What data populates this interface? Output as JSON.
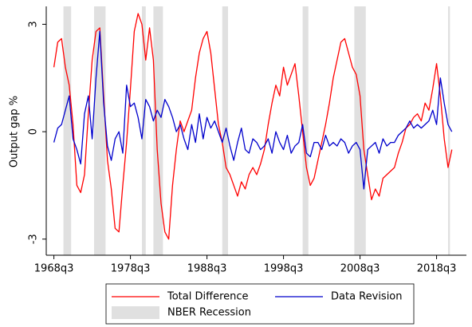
{
  "chart_data": {
    "type": "line",
    "y_label": "Output gap %",
    "x": [
      1968.5,
      1969,
      1969.5,
      1970,
      1970.5,
      1971,
      1971.5,
      1972,
      1972.5,
      1973,
      1973.5,
      1974,
      1974.5,
      1975,
      1975.5,
      1976,
      1976.5,
      1977,
      1977.5,
      1978,
      1978.5,
      1979,
      1979.5,
      1980,
      1980.5,
      1981,
      1981.5,
      1982,
      1982.5,
      1983,
      1983.5,
      1984,
      1984.5,
      1985,
      1985.5,
      1986,
      1986.5,
      1987,
      1987.5,
      1988,
      1988.5,
      1989,
      1989.5,
      1990,
      1990.5,
      1991,
      1991.5,
      1992,
      1992.5,
      1993,
      1993.5,
      1994,
      1994.5,
      1995,
      1995.5,
      1996,
      1996.5,
      1997,
      1997.5,
      1998,
      1998.5,
      1999,
      1999.5,
      2000,
      2000.5,
      2001,
      2001.5,
      2002,
      2002.5,
      2003,
      2003.5,
      2004,
      2004.5,
      2005,
      2005.5,
      2006,
      2006.5,
      2007,
      2007.5,
      2008,
      2008.5,
      2009,
      2009.5,
      2010,
      2010.5,
      2011,
      2011.5,
      2012,
      2012.5,
      2013,
      2013.5,
      2014,
      2014.5,
      2015,
      2015.5,
      2016,
      2016.5,
      2017,
      2017.5,
      2018,
      2018.5,
      2019,
      2019.5,
      2020,
      2020.5
    ],
    "series": [
      {
        "name": "Total Difference",
        "color": "#ff0000",
        "values": [
          1.8,
          2.5,
          2.6,
          1.8,
          1.3,
          0.2,
          -1.5,
          -1.7,
          -1.2,
          0.5,
          2.0,
          2.8,
          2.9,
          1.0,
          -0.8,
          -1.6,
          -2.7,
          -2.8,
          -1.5,
          -0.3,
          1.2,
          2.8,
          3.3,
          3.0,
          2.0,
          2.9,
          2.0,
          -0.5,
          -2.0,
          -2.8,
          -3.0,
          -1.5,
          -0.5,
          0.3,
          0.0,
          0.3,
          0.6,
          1.5,
          2.2,
          2.6,
          2.8,
          2.2,
          1.2,
          0.2,
          -0.3,
          -1.0,
          -1.2,
          -1.5,
          -1.8,
          -1.4,
          -1.6,
          -1.2,
          -1.0,
          -1.2,
          -0.9,
          -0.5,
          0.2,
          0.8,
          1.3,
          1.0,
          1.8,
          1.3,
          1.6,
          1.9,
          1.0,
          0.0,
          -1.0,
          -1.5,
          -1.3,
          -0.8,
          -0.3,
          0.2,
          0.8,
          1.5,
          2.0,
          2.5,
          2.6,
          2.2,
          1.8,
          1.6,
          1.0,
          -0.5,
          -1.2,
          -1.9,
          -1.6,
          -1.8,
          -1.3,
          -1.2,
          -1.1,
          -1.0,
          -0.6,
          -0.3,
          0.1,
          0.2,
          0.4,
          0.5,
          0.3,
          0.8,
          0.6,
          1.2,
          1.9,
          1.0,
          -0.2,
          -1.0,
          -0.5
        ]
      },
      {
        "name": "Data Revision",
        "color": "#0000cc",
        "values": [
          -0.3,
          0.1,
          0.2,
          0.6,
          1.0,
          -0.2,
          -0.5,
          -0.9,
          0.5,
          1.0,
          -0.2,
          1.5,
          2.8,
          0.8,
          -0.4,
          -0.8,
          -0.2,
          0.0,
          -0.6,
          1.3,
          0.7,
          0.8,
          0.4,
          -0.2,
          0.9,
          0.7,
          0.3,
          0.6,
          0.4,
          0.9,
          0.7,
          0.4,
          0.0,
          0.2,
          -0.2,
          -0.5,
          0.2,
          -0.3,
          0.5,
          -0.2,
          0.4,
          0.1,
          0.3,
          0.0,
          -0.3,
          0.1,
          -0.4,
          -0.8,
          -0.3,
          0.1,
          -0.5,
          -0.6,
          -0.2,
          -0.3,
          -0.5,
          -0.4,
          -0.2,
          -0.6,
          0.0,
          -0.3,
          -0.5,
          -0.1,
          -0.6,
          -0.4,
          -0.3,
          0.2,
          -0.6,
          -0.7,
          -0.3,
          -0.3,
          -0.5,
          -0.1,
          -0.4,
          -0.3,
          -0.4,
          -0.2,
          -0.3,
          -0.6,
          -0.4,
          -0.3,
          -0.5,
          -1.6,
          -0.5,
          -0.4,
          -0.3,
          -0.6,
          -0.2,
          -0.4,
          -0.3,
          -0.3,
          -0.1,
          0.0,
          0.1,
          0.3,
          0.1,
          0.2,
          0.1,
          0.2,
          0.3,
          0.6,
          0.2,
          1.5,
          0.8,
          0.2,
          0.0
        ]
      }
    ],
    "recession_name": "NBER Recession",
    "recession_color": "#e0e0e0",
    "recessions": [
      [
        1969.75,
        1970.75
      ],
      [
        1973.75,
        1975.25
      ],
      [
        1980.0,
        1980.5
      ],
      [
        1981.5,
        1982.75
      ],
      [
        1990.5,
        1991.25
      ],
      [
        2001.0,
        2001.75
      ],
      [
        2007.75,
        2009.25
      ],
      [
        2020.0,
        2020.25
      ]
    ],
    "xlim": [
      1967.5,
      2022.4
    ],
    "xticks": [
      {
        "value": 1968.5,
        "label": "1968q3"
      },
      {
        "value": 1978.5,
        "label": "1978q3"
      },
      {
        "value": 1988.5,
        "label": "1988q3"
      },
      {
        "value": 1998.5,
        "label": "1998q3"
      },
      {
        "value": 2008.5,
        "label": "2008q3"
      },
      {
        "value": 2018.5,
        "label": "2018q3"
      }
    ],
    "ylim": [
      -3.45,
      3.5
    ],
    "yticks": [
      -3,
      0,
      3
    ],
    "grid": false,
    "legend": "bottom"
  }
}
